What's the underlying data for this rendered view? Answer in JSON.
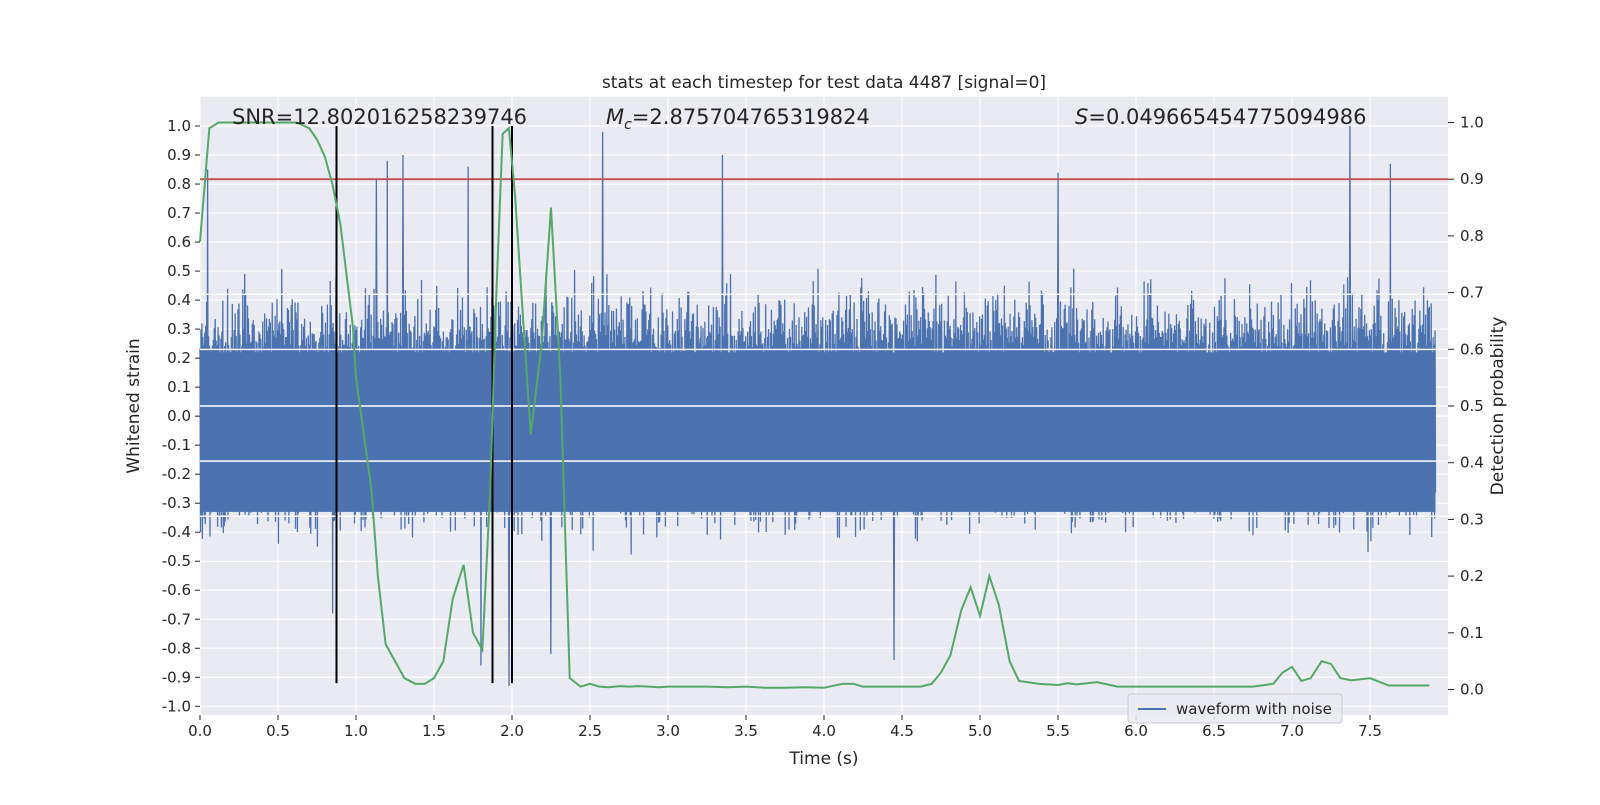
{
  "chart_data": {
    "type": "line",
    "title": "stats at each timestep for test data 4487 [signal=0]",
    "xlabel": "Time (s)",
    "ylabel_left": "Whitened strain",
    "ylabel_right": "Detection probability",
    "xlim": [
      0.0,
      8.0
    ],
    "ylim_left": [
      -1.03,
      1.1
    ],
    "ylim_right": [
      -0.045,
      1.045
    ],
    "x_ticks": [
      "0.0",
      "0.5",
      "1.0",
      "1.5",
      "2.0",
      "2.5",
      "3.0",
      "3.5",
      "4.0",
      "4.5",
      "5.0",
      "5.5",
      "6.0",
      "6.5",
      "7.0",
      "7.5"
    ],
    "y_left_ticks": [
      "-1.0",
      "-0.9",
      "-0.8",
      "-0.7",
      "-0.6",
      "-0.5",
      "-0.4",
      "-0.3",
      "-0.2",
      "-0.1",
      "0.0",
      "0.1",
      "0.2",
      "0.3",
      "0.4",
      "0.5",
      "0.6",
      "0.7",
      "0.8",
      "0.9",
      "1.0"
    ],
    "y_right_ticks": [
      "0.0",
      "0.1",
      "0.2",
      "0.3",
      "0.4",
      "0.5",
      "0.6",
      "0.7",
      "0.8",
      "0.9",
      "1.0"
    ],
    "annotations": {
      "snr": "SNR=12.802016258239746",
      "mc_symbol": "M",
      "mc_subscript": "c",
      "mc_value": "=2.875704765319824",
      "s_symbol": "S",
      "s_value": "=0.049665454775094986"
    },
    "threshold": {
      "axis": "right",
      "value": 0.9,
      "color": "#c44e52"
    },
    "vertical_lines": [
      0.875,
      1.875,
      2.0
    ],
    "legend": {
      "label": "waveform with noise",
      "placement": "lower right"
    },
    "colors": {
      "waveform": "#4c72b0",
      "probability": "#55a868",
      "background": "#eaeaf2",
      "grid": "#ffffff",
      "threshold": "#c44e52",
      "vlines": "#000000"
    },
    "series": [
      {
        "name": "waveform with noise",
        "axis": "left",
        "typical_upper": 0.42,
        "typical_lower": -0.38,
        "spikes": [
          {
            "x": 0.05,
            "y": 0.85
          },
          {
            "x": 0.85,
            "y": -0.68
          },
          {
            "x": 1.13,
            "y": 0.82
          },
          {
            "x": 1.2,
            "y": 0.88
          },
          {
            "x": 1.3,
            "y": 0.9
          },
          {
            "x": 1.72,
            "y": 0.86
          },
          {
            "x": 1.8,
            "y": -0.86
          },
          {
            "x": 1.98,
            "y": -0.93
          },
          {
            "x": 2.25,
            "y": -0.82
          },
          {
            "x": 2.58,
            "y": 0.98
          },
          {
            "x": 3.35,
            "y": 0.9
          },
          {
            "x": 4.45,
            "y": -0.84
          },
          {
            "x": 5.5,
            "y": 0.84
          },
          {
            "x": 7.37,
            "y": 1.0
          },
          {
            "x": 7.63,
            "y": 0.87
          }
        ]
      },
      {
        "name": "detection probability",
        "axis": "right",
        "x": [
          0.0,
          0.06,
          0.12,
          0.25,
          0.5,
          0.62,
          0.7,
          0.75,
          0.8,
          0.85,
          0.9,
          0.94,
          0.98,
          1.0,
          1.05,
          1.1,
          1.14,
          1.19,
          1.25,
          1.31,
          1.38,
          1.44,
          1.5,
          1.56,
          1.62,
          1.69,
          1.75,
          1.81,
          1.86,
          1.9,
          1.94,
          1.98,
          2.02,
          2.06,
          2.12,
          2.19,
          2.25,
          2.31,
          2.37,
          2.44,
          2.5,
          2.56,
          2.62,
          2.69,
          2.75,
          2.81,
          2.88,
          2.94,
          3.0,
          3.12,
          3.25,
          3.38,
          3.5,
          3.62,
          3.75,
          3.88,
          4.0,
          4.12,
          4.19,
          4.25,
          4.38,
          4.5,
          4.62,
          4.69,
          4.75,
          4.81,
          4.88,
          4.94,
          5.0,
          5.06,
          5.12,
          5.19,
          5.25,
          5.38,
          5.5,
          5.56,
          5.62,
          5.75,
          5.88,
          6.0,
          6.25,
          6.5,
          6.75,
          6.88,
          6.94,
          7.0,
          7.06,
          7.12,
          7.19,
          7.25,
          7.31,
          7.38,
          7.5,
          7.62,
          7.75,
          7.88
        ],
        "y": [
          0.79,
          0.99,
          1.0,
          1.0,
          1.0,
          1.0,
          0.99,
          0.97,
          0.94,
          0.89,
          0.82,
          0.73,
          0.64,
          0.55,
          0.45,
          0.35,
          0.2,
          0.08,
          0.05,
          0.02,
          0.01,
          0.01,
          0.02,
          0.05,
          0.16,
          0.22,
          0.1,
          0.07,
          0.35,
          0.7,
          0.98,
          0.99,
          0.87,
          0.7,
          0.45,
          0.61,
          0.85,
          0.55,
          0.02,
          0.005,
          0.01,
          0.005,
          0.004,
          0.006,
          0.005,
          0.006,
          0.005,
          0.004,
          0.005,
          0.005,
          0.005,
          0.004,
          0.005,
          0.003,
          0.003,
          0.004,
          0.003,
          0.01,
          0.01,
          0.005,
          0.005,
          0.005,
          0.005,
          0.01,
          0.03,
          0.06,
          0.14,
          0.18,
          0.13,
          0.2,
          0.15,
          0.05,
          0.015,
          0.01,
          0.008,
          0.011,
          0.009,
          0.013,
          0.005,
          0.005,
          0.005,
          0.005,
          0.005,
          0.01,
          0.03,
          0.04,
          0.015,
          0.02,
          0.05,
          0.045,
          0.02,
          0.016,
          0.02,
          0.007,
          0.007,
          0.007
        ]
      }
    ]
  }
}
